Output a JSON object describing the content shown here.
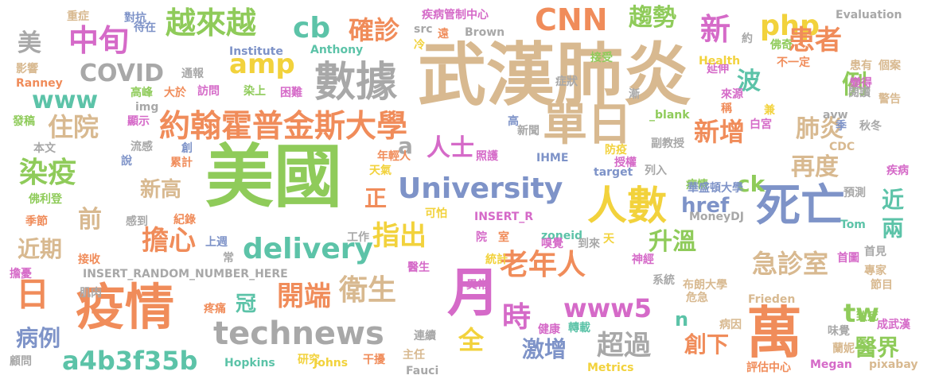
{
  "palette": {
    "tan": "#D8B990",
    "green": "#8FCB5A",
    "orange": "#F08C5A",
    "pink": "#D56AC8",
    "teal": "#5CC3A8",
    "blue": "#7E93C8",
    "gray": "#A8A8A8",
    "yellow": "#F2D23C"
  },
  "words": [
    {
      "text": "美國",
      "color": "#8FCB5A"
    },
    {
      "text": "武漢肺炎",
      "color": "#D8B990"
    },
    {
      "text": "單日",
      "color": "#D8B990"
    },
    {
      "text": "數據",
      "color": "#A8A8A8"
    },
    {
      "text": "人數",
      "color": "#F2D23C"
    },
    {
      "text": "死亡",
      "color": "#7E93C8"
    },
    {
      "text": "疫情",
      "color": "#F08C5A"
    },
    {
      "text": "月",
      "color": "#D56AC8"
    },
    {
      "text": "萬",
      "color": "#F08C5A"
    },
    {
      "text": "約翰霍普金斯大學",
      "color": "#F08C5A"
    },
    {
      "text": "University",
      "color": "#7E93C8"
    },
    {
      "text": "technews",
      "color": "#A8A8A8"
    },
    {
      "text": "delivery",
      "color": "#5CC3A8"
    },
    {
      "text": "CNN",
      "color": "#F08C5A"
    },
    {
      "text": "越來越",
      "color": "#8FCB5A"
    },
    {
      "text": "中旬",
      "color": "#D56AC8"
    },
    {
      "text": "cb",
      "color": "#5CC3A8"
    },
    {
      "text": "確診",
      "color": "#F08C5A"
    },
    {
      "text": "趨勢",
      "color": "#8FCB5A"
    },
    {
      "text": "php",
      "color": "#F2D23C"
    },
    {
      "text": "患者",
      "color": "#F08C5A"
    },
    {
      "text": "新",
      "color": "#D56AC8"
    },
    {
      "text": "amp",
      "color": "#F2D23C"
    },
    {
      "text": "COVID",
      "color": "#A8A8A8"
    },
    {
      "text": "www",
      "color": "#5CC3A8"
    },
    {
      "text": "住院",
      "color": "#D8B990"
    },
    {
      "text": "染疫",
      "color": "#8FCB5A"
    },
    {
      "text": "前",
      "color": "#D8B990"
    },
    {
      "text": "近期",
      "color": "#D8B990"
    },
    {
      "text": "擔心",
      "color": "#F08C5A"
    },
    {
      "text": "日",
      "color": "#F08C5A"
    },
    {
      "text": "病例",
      "color": "#7E93C8"
    },
    {
      "text": "a4b3f35b",
      "color": "#5CC3A8"
    },
    {
      "text": "開端",
      "color": "#F08C5A"
    },
    {
      "text": "衛生",
      "color": "#D8B990"
    },
    {
      "text": "指出",
      "color": "#F2D23C"
    },
    {
      "text": "老年人",
      "color": "#F08C5A"
    },
    {
      "text": "新增",
      "color": "#F08C5A"
    },
    {
      "text": "肺炎",
      "color": "#D8B990"
    },
    {
      "text": "再度",
      "color": "#D8B990"
    },
    {
      "text": "急診室",
      "color": "#D8B990"
    },
    {
      "text": "升溫",
      "color": "#8FCB5A"
    },
    {
      "text": "www5",
      "color": "#D56AC8"
    },
    {
      "text": "超過",
      "color": "#A8A8A8"
    },
    {
      "text": "時",
      "color": "#D56AC8"
    },
    {
      "text": "全",
      "color": "#F2D23C"
    },
    {
      "text": "激增",
      "color": "#7E93C8"
    },
    {
      "text": "創下",
      "color": "#F08C5A"
    },
    {
      "text": "醫界",
      "color": "#8FCB5A"
    },
    {
      "text": "tw",
      "color": "#8FCB5A"
    },
    {
      "text": "波",
      "color": "#5CC3A8"
    },
    {
      "text": "例",
      "color": "#8FCB5A"
    },
    {
      "text": "美",
      "color": "#A8A8A8"
    },
    {
      "text": "人士",
      "color": "#D56AC8"
    },
    {
      "text": "新高",
      "color": "#D8B990"
    },
    {
      "text": "ck",
      "color": "#8FCB5A"
    },
    {
      "text": "href",
      "color": "#7E93C8"
    },
    {
      "text": "正",
      "color": "#F08C5A"
    },
    {
      "text": "a",
      "color": "#A8A8A8"
    },
    {
      "text": "冠",
      "color": "#5CC3A8"
    },
    {
      "text": "近",
      "color": "#5CC3A8"
    },
    {
      "text": "兩",
      "color": "#5CC3A8"
    },
    {
      "text": "n",
      "color": "#5CC3A8"
    },
    {
      "text": "重症",
      "color": "#D8B990"
    },
    {
      "text": "對抗",
      "color": "#7E93C8"
    },
    {
      "text": "疾病管制中心",
      "color": "#D56AC8"
    },
    {
      "text": "src",
      "color": "#A8A8A8"
    },
    {
      "text": "遠",
      "color": "#F08C5A"
    },
    {
      "text": "Brown",
      "color": "#A8A8A8"
    },
    {
      "text": "Evaluation",
      "color": "#A8A8A8"
    },
    {
      "text": "延伸",
      "color": "#D56AC8"
    },
    {
      "text": "Anthony",
      "color": "#5CC3A8"
    },
    {
      "text": "冷",
      "color": "#F2D23C"
    },
    {
      "text": "Institute",
      "color": "#7E93C8"
    },
    {
      "text": "待在",
      "color": "#7E93C8"
    },
    {
      "text": "影響",
      "color": "#D8B990"
    },
    {
      "text": "Ranney",
      "color": "#F08C5A"
    },
    {
      "text": "通報",
      "color": "#A8A8A8"
    },
    {
      "text": "訪問",
      "color": "#D56AC8"
    },
    {
      "text": "染上",
      "color": "#8FCB5A"
    },
    {
      "text": "困難",
      "color": "#D56AC8"
    },
    {
      "text": "高峰",
      "color": "#8FCB5A"
    },
    {
      "text": "大於",
      "color": "#F08C5A"
    },
    {
      "text": "img",
      "color": "#A8A8A8"
    },
    {
      "text": "接受",
      "color": "#8FCB5A"
    },
    {
      "text": "症狀",
      "color": "#A8A8A8"
    },
    {
      "text": "Health",
      "color": "#F2D23C"
    },
    {
      "text": "佛奇",
      "color": "#8FCB5A"
    },
    {
      "text": "不一定",
      "color": "#F08C5A"
    },
    {
      "text": "患有",
      "color": "#D8B990"
    },
    {
      "text": "變得",
      "color": "#D56AC8"
    },
    {
      "text": "個案",
      "color": "#D8B990"
    },
    {
      "text": "閱讀",
      "color": "#A8A8A8"
    },
    {
      "text": "警告",
      "color": "#D8B990"
    },
    {
      "text": "約",
      "color": "#A8A8A8"
    },
    {
      "text": "_blank",
      "color": "#8FCB5A"
    },
    {
      "text": "漸",
      "color": "#A8A8A8"
    },
    {
      "text": "來源",
      "color": "#D56AC8"
    },
    {
      "text": "稱",
      "color": "#F08C5A"
    },
    {
      "text": "兼",
      "color": "#F2D23C"
    },
    {
      "text": "白宮",
      "color": "#D56AC8"
    },
    {
      "text": "avw",
      "color": "#A8A8A8"
    },
    {
      "text": "季",
      "color": "#7E93C8"
    },
    {
      "text": "秋冬",
      "color": "#A8A8A8"
    },
    {
      "text": "發稿",
      "color": "#8FCB5A"
    },
    {
      "text": "顯示",
      "color": "#D56AC8"
    },
    {
      "text": "高",
      "color": "#7E93C8"
    },
    {
      "text": "新聞",
      "color": "#A8A8A8"
    },
    {
      "text": "本文",
      "color": "#A8A8A8"
    },
    {
      "text": "流感",
      "color": "#A8A8A8"
    },
    {
      "text": "創",
      "color": "#7E93C8"
    },
    {
      "text": "說",
      "color": "#7E93C8"
    },
    {
      "text": "累計",
      "color": "#F08C5A"
    },
    {
      "text": "天氣",
      "color": "#F2D23C"
    },
    {
      "text": "年輕人",
      "color": "#F08C5A"
    },
    {
      "text": "照護",
      "color": "#D56AC8"
    },
    {
      "text": "IHME",
      "color": "#7E93C8"
    },
    {
      "text": "防疫",
      "color": "#F2D23C"
    },
    {
      "text": "副教授",
      "color": "#A8A8A8"
    },
    {
      "text": "授權",
      "color": "#D56AC8"
    },
    {
      "text": "CDC",
      "color": "#D8B990"
    },
    {
      "text": "疾病",
      "color": "#D56AC8"
    },
    {
      "text": "target",
      "color": "#7E93C8"
    },
    {
      "text": "列入",
      "color": "#A8A8A8"
    },
    {
      "text": "病情",
      "color": "#8FCB5A"
    },
    {
      "text": "華盛頓大學",
      "color": "#7E93C8"
    },
    {
      "text": "預測",
      "color": "#A8A8A8"
    },
    {
      "text": "佛利登",
      "color": "#8FCB5A"
    },
    {
      "text": "季節",
      "color": "#F08C5A"
    },
    {
      "text": "感到",
      "color": "#A8A8A8"
    },
    {
      "text": "紀錄",
      "color": "#F08C5A"
    },
    {
      "text": "可怕",
      "color": "#F2D23C"
    },
    {
      "text": "INSERT_R",
      "color": "#D56AC8"
    },
    {
      "text": "Tom",
      "color": "#5CC3A8"
    },
    {
      "text": "MoneyDJ",
      "color": "#A8A8A8"
    },
    {
      "text": "上週",
      "color": "#7E93C8"
    },
    {
      "text": "工作",
      "color": "#A8A8A8"
    },
    {
      "text": "院",
      "color": "#D56AC8"
    },
    {
      "text": "室",
      "color": "#F08C5A"
    },
    {
      "text": "zoneid",
      "color": "#5CC3A8"
    },
    {
      "text": "嗅覺",
      "color": "#D56AC8"
    },
    {
      "text": "到來",
      "color": "#A8A8A8"
    },
    {
      "text": "天",
      "color": "#F2D23C"
    },
    {
      "text": "首圖",
      "color": "#D56AC8"
    },
    {
      "text": "首見",
      "color": "#A8A8A8"
    },
    {
      "text": "專家",
      "color": "#D8B990"
    },
    {
      "text": "接收",
      "color": "#F08C5A"
    },
    {
      "text": "常",
      "color": "#A8A8A8"
    },
    {
      "text": "統計",
      "color": "#F2D23C"
    },
    {
      "text": "神經",
      "color": "#D56AC8"
    },
    {
      "text": "擔憂",
      "color": "#D56AC8"
    },
    {
      "text": "INSERT_RANDOM_NUMBER_HERE",
      "color": "#A8A8A8"
    },
    {
      "text": "醫生",
      "color": "#D56AC8"
    },
    {
      "text": "肌肉",
      "color": "#A8A8A8"
    },
    {
      "text": "系統",
      "color": "#A8A8A8"
    },
    {
      "text": "布朗大學",
      "color": "#D8B990"
    },
    {
      "text": "節目",
      "color": "#D8B990"
    },
    {
      "text": "異常",
      "color": "#D56AC8"
    },
    {
      "text": "危急",
      "color": "#D8B990"
    },
    {
      "text": "Frieden",
      "color": "#D8B990"
    },
    {
      "text": "致死",
      "color": "#8FCB5A"
    },
    {
      "text": "成武漢",
      "color": "#D56AC8"
    },
    {
      "text": "疼痛",
      "color": "#F08C5A"
    },
    {
      "text": "病因",
      "color": "#D8B990"
    },
    {
      "text": "健康",
      "color": "#D56AC8"
    },
    {
      "text": "轉載",
      "color": "#5CC3A8"
    },
    {
      "text": "味覺",
      "color": "#A8A8A8"
    },
    {
      "text": "連續",
      "color": "#A8A8A8"
    },
    {
      "text": "蘭妮",
      "color": "#D8B990"
    },
    {
      "text": "顧問",
      "color": "#A8A8A8"
    },
    {
      "text": "Hopkins",
      "color": "#5CC3A8"
    },
    {
      "text": "研究",
      "color": "#F2D23C"
    },
    {
      "text": "Johns",
      "color": "#F2D23C"
    },
    {
      "text": "干擾",
      "color": "#F08C5A"
    },
    {
      "text": "主任",
      "color": "#D8B990"
    },
    {
      "text": "Fauci",
      "color": "#A8A8A8"
    },
    {
      "text": "Metrics",
      "color": "#F2D23C"
    },
    {
      "text": "評估中心",
      "color": "#F08C5A"
    },
    {
      "text": "Megan",
      "color": "#D56AC8"
    },
    {
      "text": "pixabay",
      "color": "#D8B990"
    }
  ]
}
